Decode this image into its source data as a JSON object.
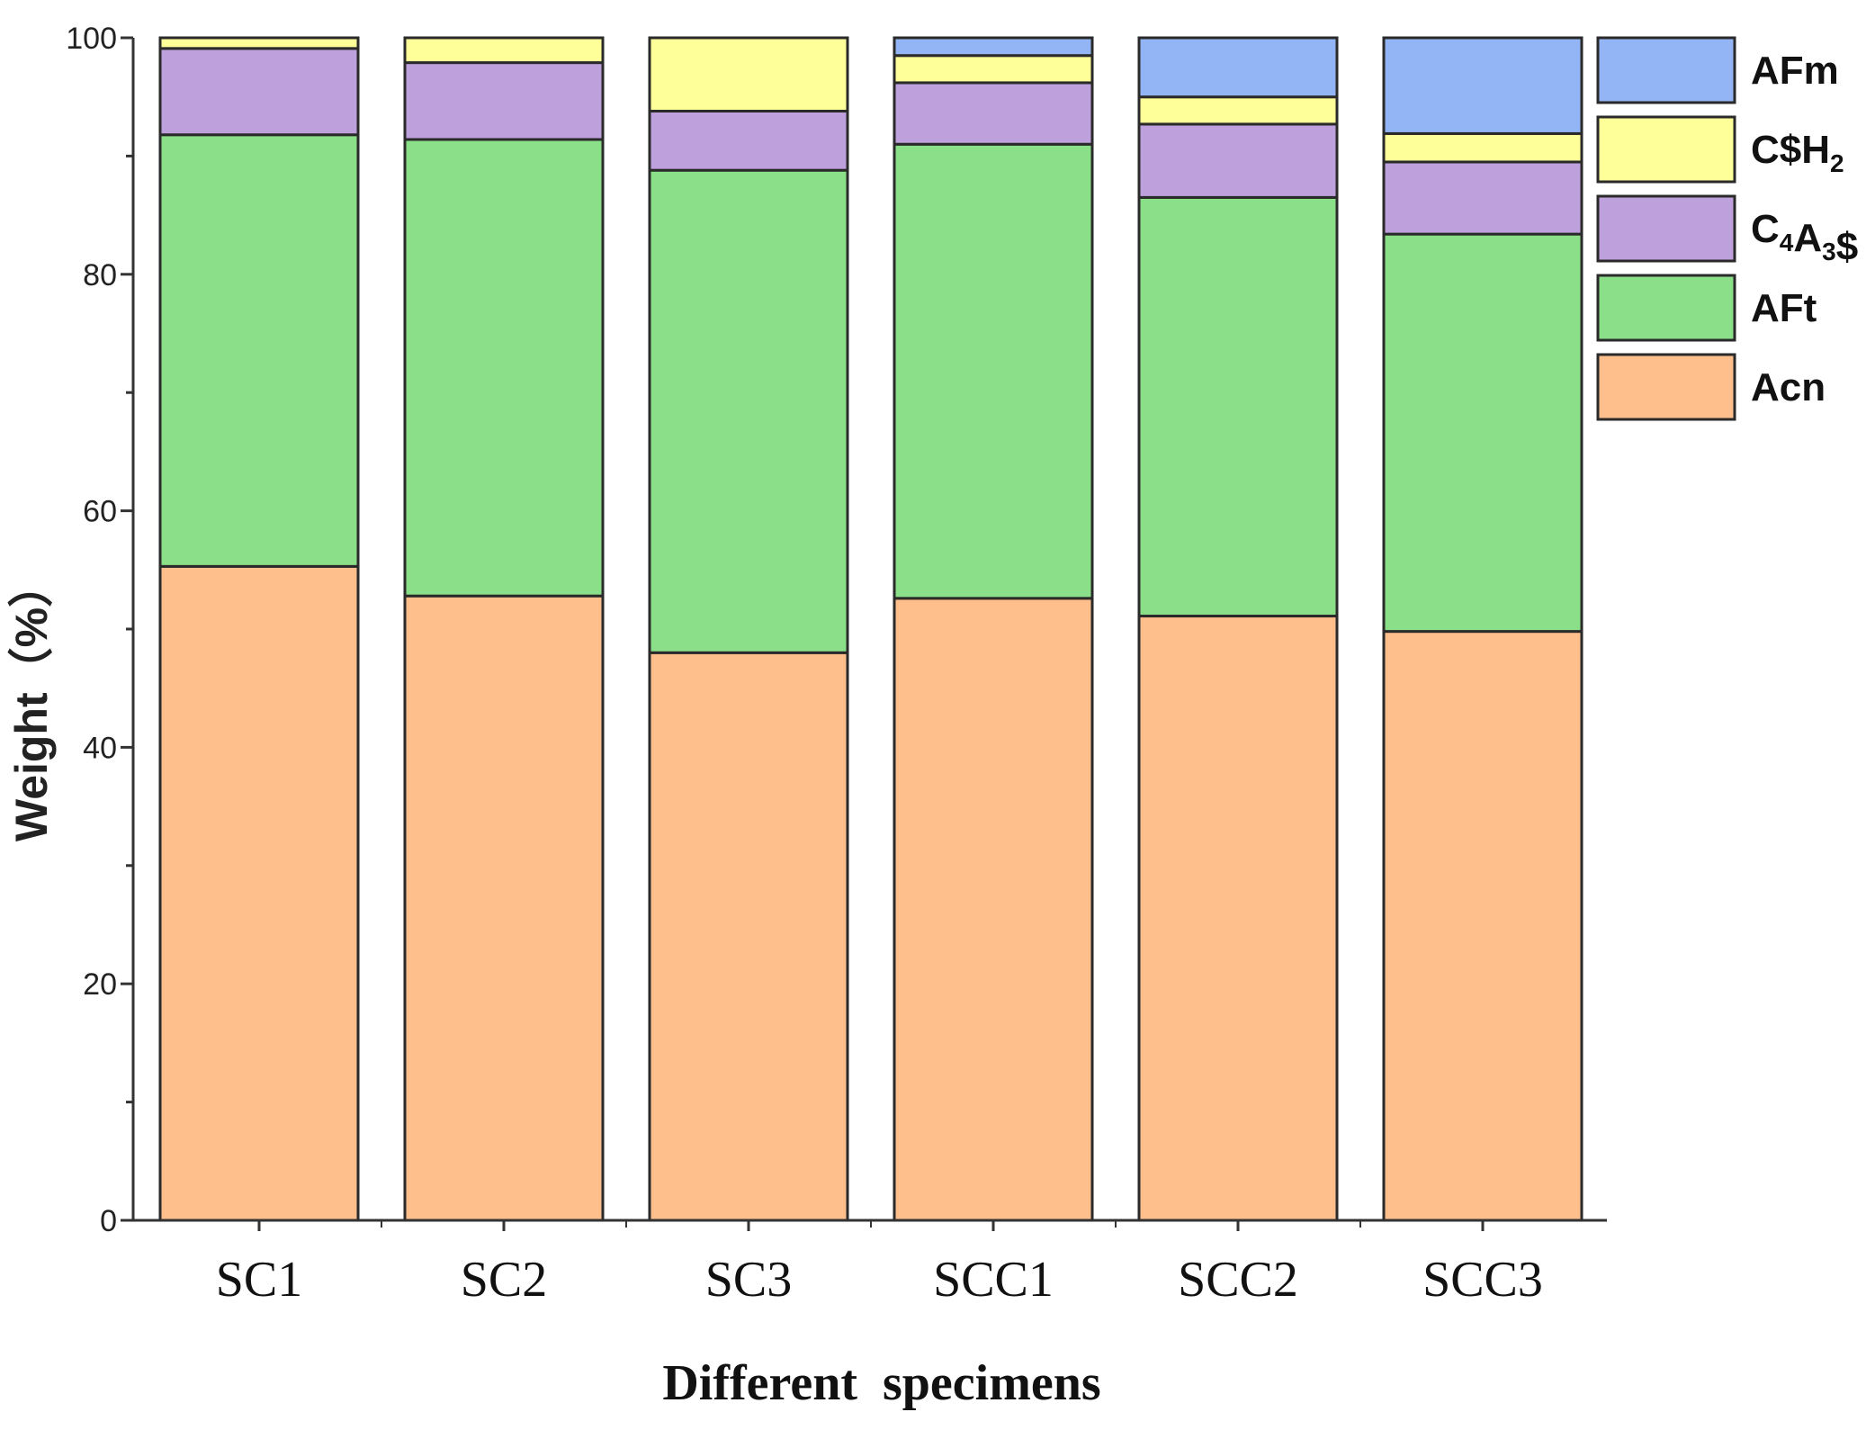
{
  "chart_data": {
    "type": "bar",
    "stacked": true,
    "title": "",
    "xlabel": "Different  specimens",
    "ylabel": "Weight（%）",
    "ylim": [
      0,
      100
    ],
    "yticks": [
      0,
      20,
      40,
      60,
      80,
      100
    ],
    "categories": [
      "SC1",
      "SC2",
      "SC3",
      "SCC1",
      "SCC2",
      "SCC3"
    ],
    "series": [
      {
        "name": "Acn",
        "color": "#FFBF8C",
        "values": [
          55.3,
          52.8,
          48.0,
          52.6,
          51.1,
          49.8
        ]
      },
      {
        "name": "AFt",
        "color": "#8BDF88",
        "values": [
          36.5,
          38.6,
          40.8,
          38.4,
          35.4,
          33.6
        ]
      },
      {
        "name": "C4A3$",
        "color": "#BDA0DC",
        "values": [
          7.3,
          6.5,
          5.0,
          5.2,
          6.2,
          6.1
        ]
      },
      {
        "name": "C$H2",
        "color": "#FFFF9A",
        "values": [
          0.9,
          2.1,
          6.2,
          2.3,
          2.3,
          2.4
        ]
      },
      {
        "name": "AFm",
        "color": "#93B4F5",
        "values": [
          0,
          0,
          0,
          1.5,
          5.0,
          8.1
        ]
      }
    ],
    "legend": [
      {
        "key": "AFm",
        "base": "AFm",
        "sub1": "",
        "mid": "",
        "sub2": "",
        "tail": ""
      },
      {
        "key": "C$H2",
        "base": "C$H",
        "sub1": "2",
        "mid": "",
        "sub2": "",
        "tail": ""
      },
      {
        "key": "C4A3$",
        "base": "C",
        "sub1": "4",
        "mid": "A",
        "sub2": "3",
        "tail": "$"
      },
      {
        "key": "AFt",
        "base": "AFt",
        "sub1": "",
        "mid": "",
        "sub2": "",
        "tail": ""
      },
      {
        "key": "Acn",
        "base": "Acn",
        "sub1": "",
        "mid": "",
        "sub2": "",
        "tail": ""
      }
    ],
    "legend_position": "top-right"
  }
}
